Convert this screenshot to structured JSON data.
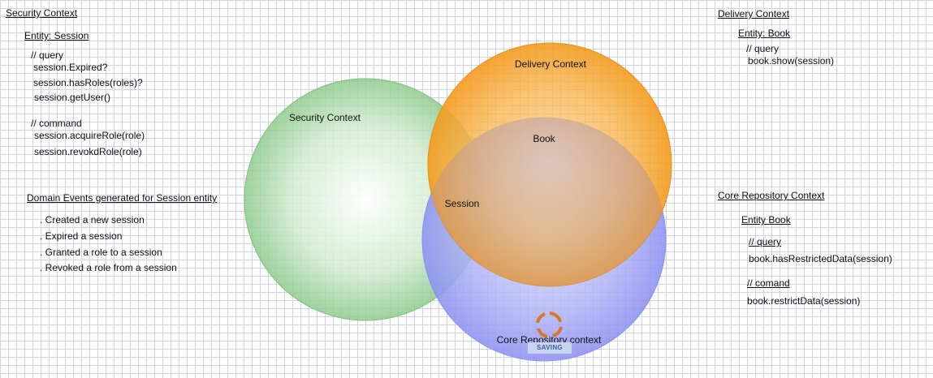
{
  "security_panel": {
    "title": "Security Context",
    "entity": "Entity: Session",
    "query_comment": "// query",
    "queries": [
      "session.Expired?",
      "session.hasRoles(roles)?",
      "session.getUser()"
    ],
    "command_comment": "// command",
    "commands": [
      "session.acquireRole(role)",
      "session.revokdRole(role)"
    ]
  },
  "domain_events": {
    "title": "Domain Events generated for Session entity",
    "items": [
      ". Created a new session",
      ". Expired a session",
      ". Granted a role to a session",
      ". Revoked a role from a session"
    ]
  },
  "delivery_panel": {
    "title": "Delivery Context",
    "entity": "Entity: Book",
    "query_comment": "// query",
    "queries": [
      "book.show(session)"
    ]
  },
  "core_repo_panel": {
    "title": "Core Repository Context",
    "entity": "Entity Book",
    "query_comment": "// query",
    "queries": [
      "book.hasRestrictedData(session)"
    ],
    "command_comment": "// comand",
    "commands": [
      "book.restrictData(session)"
    ]
  },
  "venn": {
    "circles": [
      {
        "label": "Security Context",
        "color": "#7cc47f"
      },
      {
        "label": "Delivery Context",
        "color": "#f5a623"
      },
      {
        "label": "Core Repository context",
        "color": "#8e93f2"
      }
    ],
    "intersections": {
      "center": "Book",
      "session": "Session"
    }
  },
  "saving_indicator": {
    "label": "SAVING",
    "color": "#d9762b"
  }
}
